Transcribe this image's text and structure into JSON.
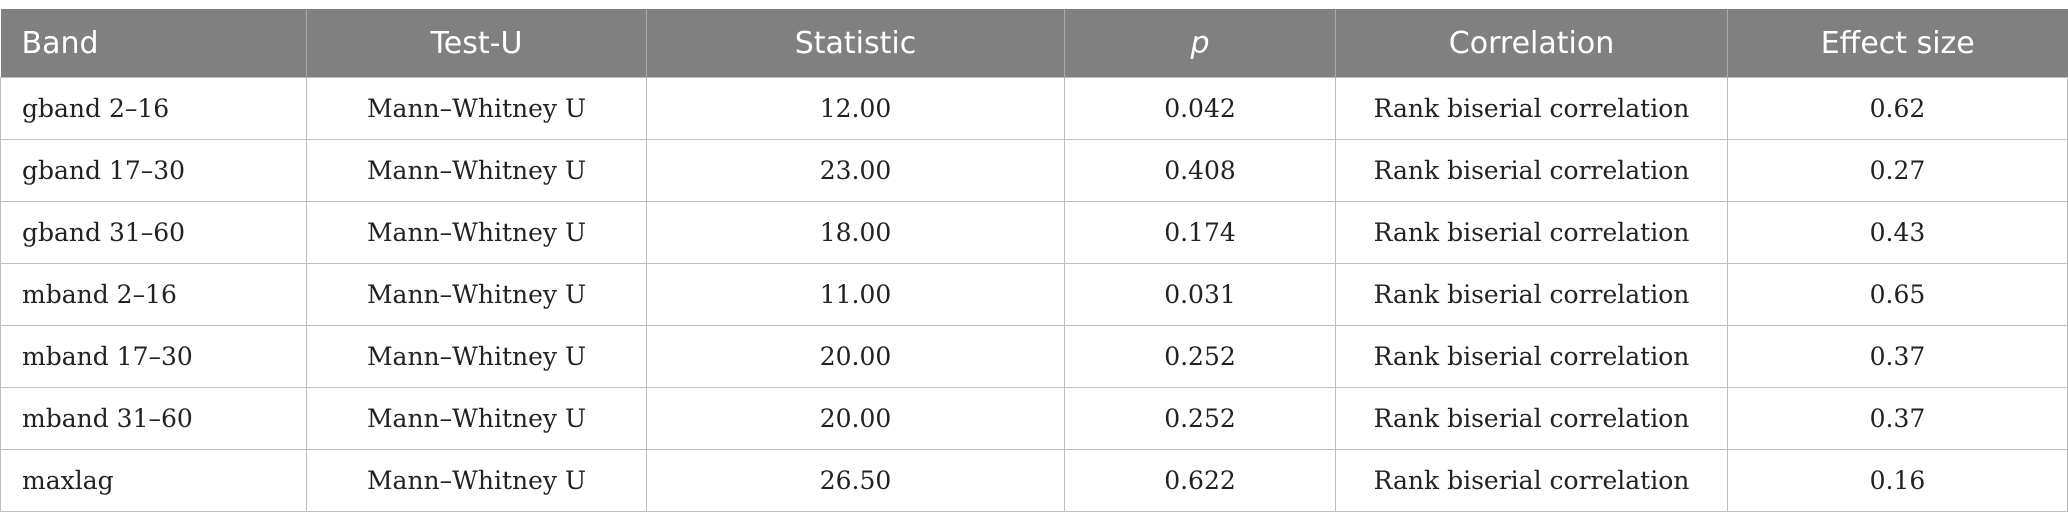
{
  "table": {
    "columns": [
      "Band",
      "Test-U",
      "Statistic",
      "p",
      "Correlation",
      "Effect size"
    ],
    "rows": [
      [
        "gband 2–16",
        "Mann–Whitney U",
        "12.00",
        "0.042",
        "Rank biserial correlation",
        "0.62"
      ],
      [
        "gband 17–30",
        "Mann–Whitney U",
        "23.00",
        "0.408",
        "Rank biserial correlation",
        "0.27"
      ],
      [
        "gband 31–60",
        "Mann–Whitney U",
        "18.00",
        "0.174",
        "Rank biserial correlation",
        "0.43"
      ],
      [
        "mband 2–16",
        "Mann–Whitney U",
        "11.00",
        "0.031",
        "Rank biserial correlation",
        "0.65"
      ],
      [
        "mband 17–30",
        "Mann–Whitney U",
        "20.00",
        "0.252",
        "Rank biserial correlation",
        "0.37"
      ],
      [
        "mband 31–60",
        "Mann–Whitney U",
        "20.00",
        "0.252",
        "Rank biserial correlation",
        "0.37"
      ],
      [
        "maxlag",
        "Mann–Whitney U",
        "26.50",
        "0.622",
        "Rank biserial correlation",
        "0.16"
      ]
    ]
  }
}
